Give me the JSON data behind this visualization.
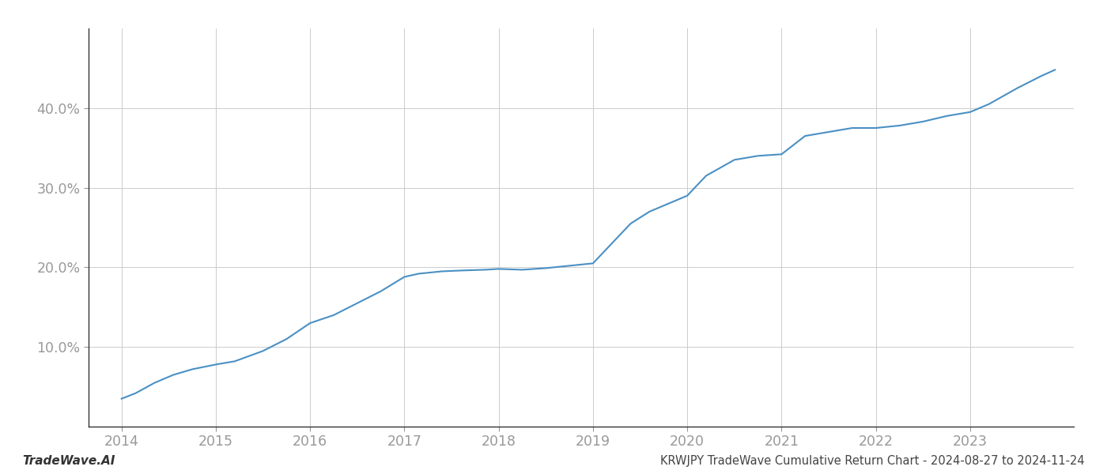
{
  "title": "KRWJPY TradeWave Cumulative Return Chart - 2024-08-27 to 2024-11-24",
  "watermark": "TradeWave.AI",
  "line_color": "#4a90c4",
  "background_color": "#ffffff",
  "grid_color": "#cccccc",
  "spine_color": "#333333",
  "x_years": [
    2014,
    2015,
    2016,
    2017,
    2018,
    2019,
    2020,
    2021,
    2022,
    2023
  ],
  "x_data": [
    2014.0,
    2014.15,
    2014.35,
    2014.55,
    2014.75,
    2015.0,
    2015.2,
    2015.5,
    2015.75,
    2016.0,
    2016.25,
    2016.5,
    2016.75,
    2017.0,
    2017.15,
    2017.4,
    2017.6,
    2017.85,
    2018.0,
    2018.25,
    2018.5,
    2018.75,
    2019.0,
    2019.2,
    2019.4,
    2019.6,
    2019.8,
    2020.0,
    2020.2,
    2020.5,
    2020.75,
    2021.0,
    2021.25,
    2021.5,
    2021.75,
    2022.0,
    2022.25,
    2022.5,
    2022.75,
    2023.0,
    2023.2,
    2023.5,
    2023.75,
    2023.9
  ],
  "y_data": [
    3.5,
    4.2,
    5.5,
    6.5,
    7.2,
    7.8,
    8.2,
    9.5,
    11.0,
    13.0,
    14.0,
    15.5,
    17.0,
    18.8,
    19.2,
    19.5,
    19.6,
    19.7,
    19.8,
    19.7,
    19.9,
    20.2,
    20.5,
    23.0,
    25.5,
    27.0,
    28.0,
    29.0,
    31.5,
    33.5,
    34.0,
    34.2,
    36.5,
    37.0,
    37.5,
    37.5,
    37.8,
    38.3,
    39.0,
    39.5,
    40.5,
    42.5,
    44.0,
    44.8
  ],
  "ylim": [
    0,
    50
  ],
  "yticks": [
    10.0,
    20.0,
    30.0,
    40.0
  ],
  "xlim": [
    2013.65,
    2024.1
  ],
  "line_width": 1.5,
  "title_fontsize": 10.5,
  "watermark_fontsize": 11,
  "tick_color": "#999999",
  "tick_fontsize": 12.5,
  "title_color": "#444444"
}
